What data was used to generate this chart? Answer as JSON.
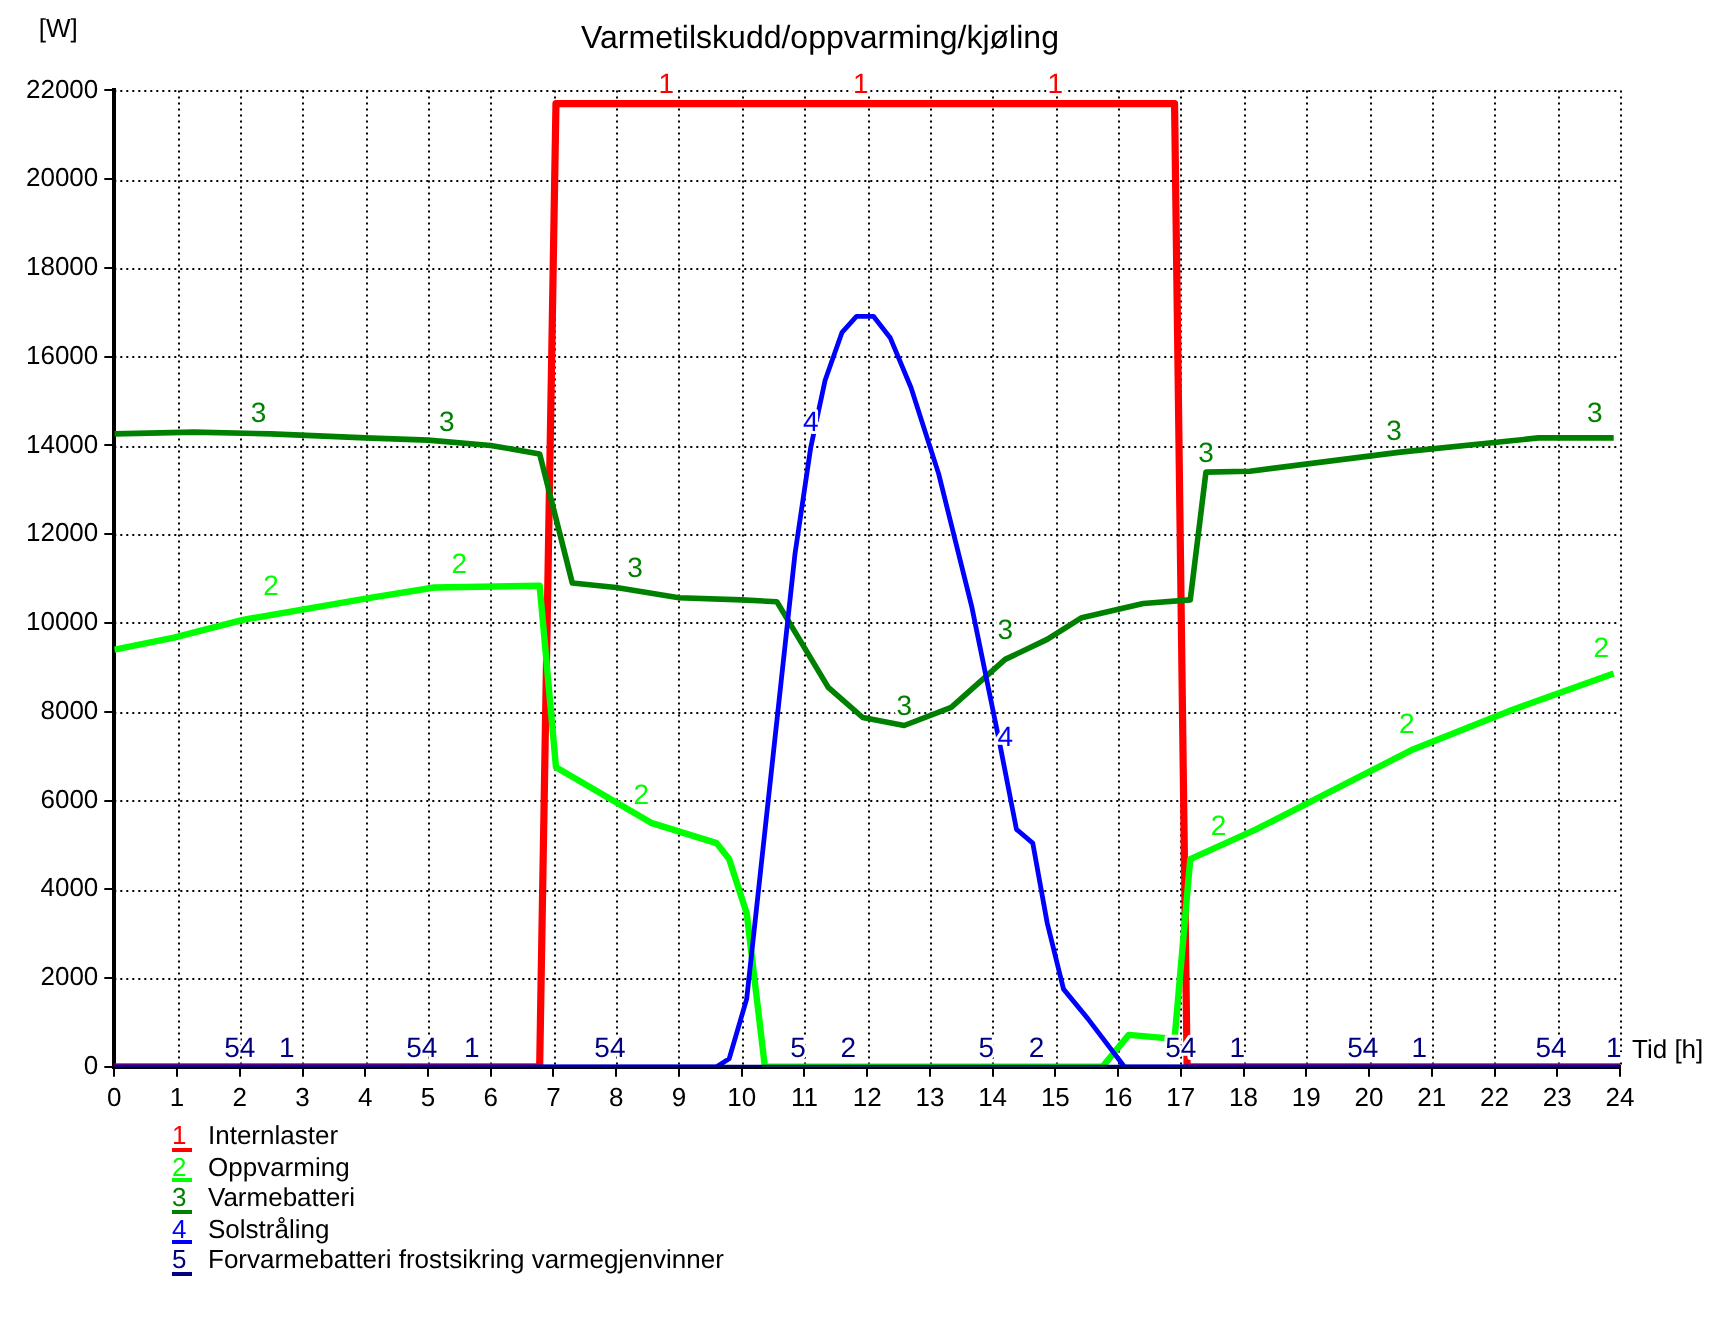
{
  "chart_data": {
    "type": "line",
    "title": "Varmetilskudd/oppvarming/kjøling",
    "xlabel": "Tid [h]",
    "ylabel": "[W]",
    "xlim": [
      0,
      24
    ],
    "xticks": [
      0,
      1,
      2,
      3,
      4,
      5,
      6,
      7,
      8,
      9,
      10,
      11,
      12,
      13,
      14,
      15,
      16,
      17,
      18,
      19,
      20,
      21,
      22,
      23,
      24
    ],
    "ylim": [
      0,
      22000
    ],
    "yticks": [
      0,
      2000,
      4000,
      6000,
      8000,
      10000,
      12000,
      14000,
      16000,
      18000,
      20000,
      22000
    ],
    "grid": true,
    "legend": "bottom",
    "marker": "none",
    "line_style": "solid",
    "series": [
      {
        "name": "Internlaster",
        "color": "#ff0000",
        "x": [
          0,
          6.78,
          7.04,
          16.9,
          17.1,
          24
        ],
        "values": [
          0,
          0,
          21700,
          21700,
          0,
          0
        ]
      },
      {
        "name": "Oppvarming",
        "color": "#00ff00",
        "x": [
          0,
          0.95,
          2.05,
          4.1,
          5.1,
          6.78,
          7.04,
          8.57,
          9.6,
          9.8,
          10.08,
          10.37,
          15.75,
          16.17,
          16.9,
          17.15,
          18.2,
          20.7,
          22.3,
          23.9
        ],
        "values": [
          9400,
          9670,
          10070,
          10570,
          10800,
          10840,
          6750,
          5490,
          5040,
          4680,
          3460,
          0,
          0,
          720,
          630,
          4680,
          5350,
          7150,
          8050,
          8860
        ]
      },
      {
        "name": "Varmebatteri",
        "color": "#008000",
        "x": [
          0,
          1.27,
          2.5,
          4,
          5,
          6,
          6.78,
          7.3,
          8,
          9,
          10,
          10.56,
          11.38,
          11.93,
          12.59,
          13.34,
          14.2,
          14.87,
          15.42,
          16.4,
          17.15,
          17.4,
          18.1,
          20.5,
          22.7,
          23.9
        ],
        "values": [
          14260,
          14300,
          14260,
          14170,
          14120,
          14000,
          13810,
          10900,
          10800,
          10570,
          10520,
          10480,
          8550,
          7870,
          7690,
          8100,
          9180,
          9630,
          10120,
          10440,
          10520,
          13400,
          13420,
          13850,
          14170,
          14170
        ]
      },
      {
        "name": "Solstråling",
        "color": "#0000ff",
        "x": [
          0,
          9.6,
          9.8,
          10.08,
          10.85,
          11.1,
          11.33,
          11.6,
          11.83,
          12.1,
          12.37,
          12.7,
          13.14,
          13.67,
          14.1,
          14.38,
          14.64,
          14.87,
          15.13,
          15.52,
          16.1,
          24
        ],
        "values": [
          0,
          0,
          180,
          1530,
          11560,
          13950,
          15470,
          16550,
          16910,
          16910,
          16420,
          15300,
          13360,
          10350,
          7380,
          5350,
          5040,
          3240,
          1750,
          1080,
          0,
          0
        ]
      },
      {
        "name": "Forvarmebatteri frostsikring varmegjenvinner",
        "color": "#000080",
        "x": [
          0,
          24
        ],
        "values": [
          0,
          0
        ]
      }
    ],
    "annotations": [
      {
        "text": "1",
        "x": 8.8,
        "y": 21700
      },
      {
        "text": "1",
        "x": 11.9,
        "y": 21700
      },
      {
        "text": "1",
        "x": 15,
        "y": 21700
      },
      {
        "text": "1",
        "x": 2.75,
        "y": 0
      },
      {
        "text": "1",
        "x": 5.7,
        "y": 0
      },
      {
        "text": "1",
        "x": 17.9,
        "y": 0
      },
      {
        "text": "1",
        "x": 20.8,
        "y": 0
      },
      {
        "text": "1",
        "x": 23.9,
        "y": 0
      },
      {
        "text": "54",
        "x": 2,
        "y": 0
      },
      {
        "text": "54",
        "x": 4.9,
        "y": 0
      },
      {
        "text": "54",
        "x": 7.9,
        "y": 0
      },
      {
        "text": "54",
        "x": 17,
        "y": 0
      },
      {
        "text": "54",
        "x": 19.9,
        "y": 0
      },
      {
        "text": "54",
        "x": 22.9,
        "y": 0
      },
      {
        "text": "5",
        "x": 10.9,
        "y": 0
      },
      {
        "text": "5",
        "x": 13.9,
        "y": 0
      },
      {
        "text": "2",
        "x": 11.7,
        "y": 0
      },
      {
        "text": "2",
        "x": 14.7,
        "y": 0
      },
      {
        "text": "2",
        "x": 2.5,
        "y": 10400
      },
      {
        "text": "2",
        "x": 5.5,
        "y": 10900
      },
      {
        "text": "2",
        "x": 8.4,
        "y": 5700
      },
      {
        "text": "2",
        "x": 17.6,
        "y": 5000
      },
      {
        "text": "2",
        "x": 20.6,
        "y": 7300
      },
      {
        "text": "2",
        "x": 23.7,
        "y": 9000
      },
      {
        "text": "3",
        "x": 2.3,
        "y": 14300
      },
      {
        "text": "3",
        "x": 5.3,
        "y": 14100
      },
      {
        "text": "3",
        "x": 8.3,
        "y": 10800
      },
      {
        "text": "3",
        "x": 12.59,
        "y": 7690
      },
      {
        "text": "3",
        "x": 14.2,
        "y": 9400
      },
      {
        "text": "3",
        "x": 17.4,
        "y": 13400
      },
      {
        "text": "3",
        "x": 20.4,
        "y": 13900
      },
      {
        "text": "3",
        "x": 23.6,
        "y": 14300
      },
      {
        "text": "4",
        "x": 11.1,
        "y": 14100
      },
      {
        "text": "4",
        "x": 14.2,
        "y": 7000
      }
    ]
  }
}
